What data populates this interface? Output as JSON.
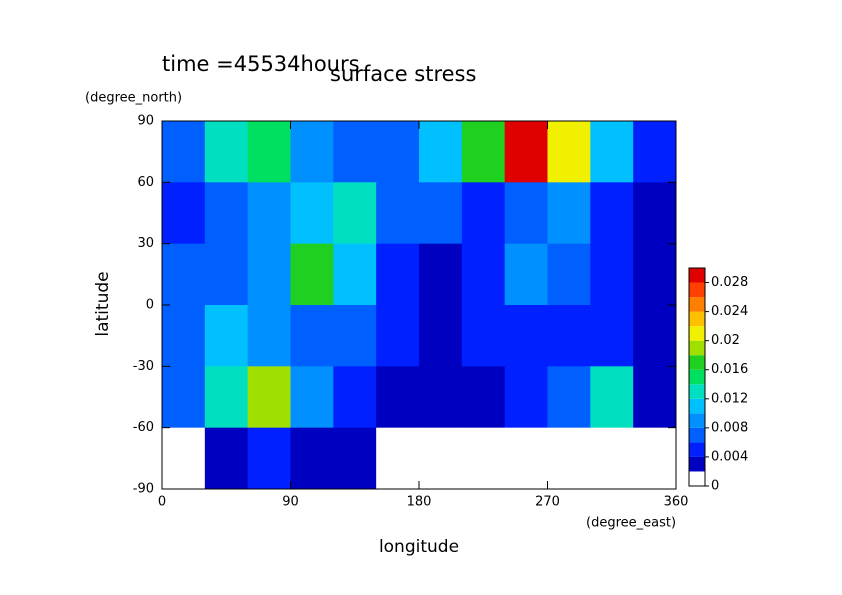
{
  "chart_data": {
    "type": "contour",
    "title": "surface stress",
    "time_label": "time =45534hours",
    "x_label": "longitude",
    "x_unit": "(degree_east)",
    "y_label": "latitude",
    "y_unit": "(degree_north)",
    "xlim": [
      0,
      360
    ],
    "xticks": [
      0,
      90,
      180,
      270,
      360
    ],
    "ylim": [
      -90,
      90
    ],
    "yticks": [
      -90,
      -60,
      -30,
      0,
      30,
      60,
      90
    ],
    "x": [
      15,
      45,
      75,
      105,
      135,
      165,
      195,
      225,
      255,
      285,
      315,
      345
    ],
    "y": [
      75,
      45,
      15,
      -15,
      -45,
      -75
    ],
    "z": [
      [
        0.006,
        0.012,
        0.014,
        0.008,
        0.006,
        0.006,
        0.01,
        0.016,
        0.03,
        0.02,
        0.01,
        0.004
      ],
      [
        0.004,
        0.006,
        0.008,
        0.01,
        0.012,
        0.006,
        0.006,
        0.004,
        0.006,
        0.008,
        0.004,
        0.002
      ],
      [
        0.006,
        0.006,
        0.008,
        0.016,
        0.01,
        0.004,
        0.002,
        0.004,
        0.008,
        0.006,
        0.004,
        0.002
      ],
      [
        0.006,
        0.01,
        0.008,
        0.006,
        0.006,
        0.004,
        0.002,
        0.004,
        0.004,
        0.004,
        0.004,
        0.002
      ],
      [
        0.006,
        0.012,
        0.018,
        0.008,
        0.004,
        0.002,
        0.002,
        0.002,
        0.004,
        0.006,
        0.012,
        0.002
      ],
      [
        0,
        0.002,
        0.004,
        0.002,
        0.002,
        0,
        0,
        0,
        0,
        0,
        0,
        0
      ]
    ],
    "levels": [
      0,
      0.002,
      0.004,
      0.006,
      0.008,
      0.01,
      0.012,
      0.014,
      0.016,
      0.018,
      0.02,
      0.022,
      0.024,
      0.026,
      0.028,
      0.03
    ],
    "colors": [
      "#ffffff",
      "#0000c0",
      "#0020ff",
      "#0060ff",
      "#0090ff",
      "#00c0ff",
      "#00e0c0",
      "#00e060",
      "#20d020",
      "#a0e000",
      "#f0f000",
      "#ffc000",
      "#ff8000",
      "#ff4000",
      "#e00000"
    ],
    "colorbar_ticks": [
      0,
      0.004,
      0.008,
      0.012,
      0.016,
      0.02,
      0.024,
      0.028
    ]
  }
}
